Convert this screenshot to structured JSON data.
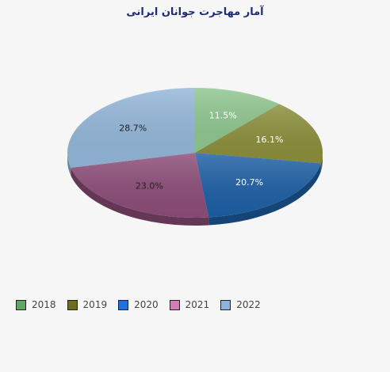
{
  "chart_data": {
    "type": "pie",
    "title": "آمار مهاجرت جوانان ایرانی",
    "categories": [
      "2018",
      "2019",
      "2020",
      "2021",
      "2022"
    ],
    "values": [
      11.5,
      16.1,
      20.7,
      23.0,
      28.7
    ],
    "labels": [
      "11.5%",
      "16.1%",
      "20.7%",
      "23.0%",
      "28.7%"
    ],
    "colors": [
      "#8fc68f",
      "#8b8e3a",
      "#1d5fa5",
      "#8c4c78",
      "#93b6d9"
    ],
    "legend_colors": [
      "#5fa85f",
      "#6d6e1c",
      "#1f73d8",
      "#d67ab8",
      "#8ab4e0"
    ],
    "label_colors": [
      "#ffffff",
      "#ffffff",
      "#ffffff",
      "#222222",
      "#222222"
    ],
    "legend_position": "bottom-left",
    "style": "3d"
  }
}
